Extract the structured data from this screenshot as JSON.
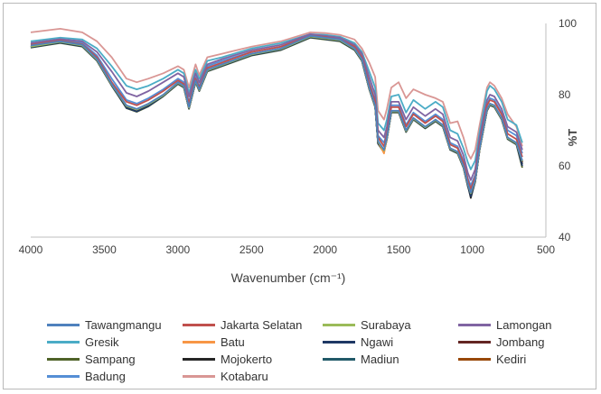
{
  "chart_data": {
    "type": "line",
    "title": "",
    "xlabel": "Wavenumber (cm⁻¹)",
    "ylabel": "%T",
    "xlim": [
      4000,
      500
    ],
    "ylim": [
      40,
      100
    ],
    "x_reversed": true,
    "y_axis_side": "right",
    "grid": false,
    "legend_position": "bottom",
    "xticks": [
      "4000",
      "3500",
      "3000",
      "2500",
      "2000",
      "1500",
      "1000",
      "500"
    ],
    "yticks": [
      "40",
      "60",
      "80",
      "100"
    ],
    "x": [
      4000,
      3800,
      3650,
      3550,
      3450,
      3350,
      3280,
      3200,
      3100,
      3000,
      2960,
      2925,
      2880,
      2855,
      2800,
      2700,
      2500,
      2300,
      2100,
      2000,
      1900,
      1800,
      1750,
      1700,
      1660,
      1640,
      1600,
      1580,
      1550,
      1500,
      1450,
      1400,
      1320,
      1250,
      1200,
      1150,
      1100,
      1060,
      1030,
      1010,
      980,
      950,
      900,
      880,
      850,
      800,
      760,
      700,
      660
    ],
    "series": [
      {
        "name": "Tawangmangu",
        "color": "#4f81bd",
        "values": [
          93.8,
          95.0,
          94.0,
          90.0,
          83.0,
          77.0,
          76.0,
          77.5,
          80.0,
          83.5,
          82.5,
          76.5,
          84.0,
          81.5,
          87.0,
          88.5,
          91.5,
          93.0,
          96.5,
          96.0,
          95.5,
          93.0,
          90.0,
          82.0,
          77.0,
          67.0,
          64.5,
          68.0,
          75.5,
          75.5,
          70.0,
          73.5,
          71.0,
          73.0,
          71.5,
          65.0,
          64.0,
          60.0,
          55.0,
          52.5,
          56.0,
          65.0,
          76.0,
          77.5,
          77.0,
          73.5,
          68.0,
          66.5,
          61.5
        ]
      },
      {
        "name": "Jakarta Selatan",
        "color": "#c0504d",
        "values": [
          94.0,
          95.2,
          94.2,
          90.5,
          83.5,
          78.0,
          77.0,
          78.5,
          81.0,
          84.0,
          83.0,
          77.5,
          84.5,
          82.0,
          87.5,
          89.0,
          92.0,
          93.5,
          96.5,
          96.2,
          95.5,
          93.5,
          90.5,
          83.0,
          78.0,
          68.0,
          65.5,
          69.0,
          76.5,
          76.5,
          71.0,
          74.5,
          72.0,
          74.0,
          72.5,
          66.0,
          65.0,
          61.0,
          56.0,
          53.5,
          57.0,
          66.0,
          77.0,
          78.5,
          78.0,
          74.5,
          69.0,
          67.5,
          62.5
        ]
      },
      {
        "name": "Surabaya",
        "color": "#9bbb59",
        "values": [
          93.5,
          94.8,
          93.8,
          89.8,
          82.8,
          76.8,
          75.8,
          77.3,
          79.8,
          83.3,
          82.3,
          76.3,
          83.8,
          81.3,
          86.8,
          88.3,
          91.3,
          92.8,
          96.3,
          95.8,
          95.3,
          92.8,
          89.8,
          81.8,
          76.8,
          66.8,
          64.3,
          67.8,
          75.3,
          75.3,
          69.8,
          73.3,
          70.8,
          72.8,
          71.3,
          64.8,
          63.8,
          59.8,
          54.8,
          52.3,
          55.8,
          64.8,
          75.8,
          77.3,
          76.8,
          73.3,
          67.8,
          66.3,
          61.3
        ]
      },
      {
        "name": "Lamongan",
        "color": "#8064a2",
        "values": [
          94.5,
          95.6,
          95.0,
          92.0,
          86.5,
          80.5,
          79.5,
          81.0,
          83.5,
          86.0,
          85.0,
          79.5,
          86.0,
          83.5,
          88.5,
          90.0,
          92.5,
          94.0,
          97.0,
          96.5,
          96.0,
          94.0,
          91.5,
          85.0,
          80.0,
          70.0,
          68.0,
          71.0,
          78.0,
          78.0,
          73.0,
          76.5,
          74.0,
          76.0,
          74.5,
          68.0,
          67.0,
          63.0,
          58.0,
          56.0,
          59.0,
          68.0,
          78.5,
          80.0,
          79.5,
          76.0,
          71.0,
          69.5,
          64.5
        ]
      },
      {
        "name": "Gresik",
        "color": "#4bacc6",
        "values": [
          95.0,
          96.0,
          95.5,
          93.0,
          88.0,
          82.5,
          81.5,
          82.5,
          84.5,
          87.0,
          86.0,
          80.5,
          87.0,
          84.5,
          89.5,
          90.5,
          93.0,
          94.5,
          97.0,
          96.8,
          96.3,
          94.5,
          92.0,
          86.5,
          82.0,
          72.0,
          70.0,
          73.0,
          79.5,
          80.0,
          75.0,
          78.5,
          76.0,
          78.0,
          76.5,
          70.0,
          69.0,
          65.0,
          61.0,
          59.0,
          61.5,
          69.5,
          81.0,
          82.5,
          81.5,
          78.0,
          73.0,
          71.5,
          66.5
        ]
      },
      {
        "name": "Batu",
        "color": "#f79646",
        "values": [
          93.6,
          94.9,
          93.9,
          89.9,
          82.9,
          76.9,
          75.9,
          77.4,
          79.9,
          83.4,
          82.4,
          76.4,
          83.9,
          81.4,
          86.9,
          88.4,
          91.4,
          92.9,
          96.4,
          95.9,
          95.4,
          92.9,
          89.9,
          81.9,
          76.9,
          66.9,
          63.5,
          67.9,
          75.4,
          75.4,
          69.9,
          73.4,
          70.9,
          72.9,
          71.4,
          64.9,
          63.9,
          59.9,
          54.9,
          52.4,
          55.9,
          64.9,
          75.9,
          77.4,
          76.9,
          73.4,
          67.9,
          66.4,
          61.4
        ]
      },
      {
        "name": "Ngawi",
        "color": "#1f3864",
        "values": [
          93.3,
          94.6,
          93.6,
          89.6,
          82.6,
          76.3,
          75.3,
          76.8,
          79.6,
          83.1,
          82.1,
          76.1,
          83.6,
          81.1,
          86.6,
          88.1,
          91.1,
          92.6,
          96.1,
          95.6,
          95.1,
          92.6,
          89.6,
          81.6,
          76.6,
          66.3,
          64.0,
          67.6,
          75.1,
          75.1,
          69.6,
          73.1,
          70.6,
          72.6,
          71.1,
          64.6,
          63.6,
          59.6,
          54.3,
          51.5,
          55.6,
          64.6,
          75.6,
          77.1,
          76.6,
          73.1,
          67.6,
          66.1,
          60.0
        ]
      },
      {
        "name": "Jombang",
        "color": "#632523",
        "values": [
          93.4,
          94.7,
          93.7,
          89.7,
          82.7,
          76.5,
          75.5,
          77.0,
          79.7,
          83.2,
          82.2,
          76.2,
          83.7,
          81.2,
          86.7,
          88.2,
          91.2,
          92.7,
          96.2,
          95.7,
          95.2,
          92.7,
          89.7,
          81.7,
          76.7,
          66.5,
          64.2,
          67.7,
          75.2,
          75.2,
          69.7,
          73.2,
          70.7,
          72.7,
          71.2,
          64.7,
          63.7,
          59.7,
          54.5,
          52.0,
          55.7,
          64.7,
          75.7,
          77.2,
          76.7,
          73.2,
          67.7,
          66.2,
          61.0
        ]
      },
      {
        "name": "Sampang",
        "color": "#4f6228",
        "values": [
          93.2,
          94.5,
          93.5,
          89.5,
          82.5,
          76.2,
          75.2,
          76.7,
          79.5,
          83.0,
          82.0,
          76.0,
          83.5,
          81.0,
          86.5,
          88.0,
          91.0,
          92.5,
          96.0,
          95.5,
          95.0,
          92.5,
          89.5,
          81.5,
          76.5,
          66.2,
          63.8,
          67.5,
          75.0,
          75.0,
          69.5,
          73.0,
          70.5,
          72.5,
          71.0,
          64.5,
          63.5,
          59.5,
          54.2,
          51.8,
          55.5,
          64.5,
          75.5,
          77.0,
          76.5,
          73.0,
          67.5,
          66.0,
          59.5
        ]
      },
      {
        "name": "Mojokerto",
        "color": "#262626",
        "values": [
          93.3,
          94.6,
          93.6,
          89.6,
          82.6,
          76.4,
          75.4,
          76.9,
          79.6,
          83.1,
          82.1,
          76.1,
          83.6,
          81.1,
          86.6,
          88.1,
          91.1,
          92.6,
          96.1,
          95.6,
          95.1,
          92.6,
          89.6,
          81.6,
          76.6,
          66.4,
          64.1,
          67.6,
          75.1,
          75.1,
          69.6,
          73.1,
          70.6,
          72.6,
          71.1,
          64.6,
          63.6,
          59.6,
          54.4,
          51.0,
          55.6,
          64.6,
          75.6,
          77.1,
          76.6,
          73.1,
          67.6,
          66.1,
          60.5
        ]
      },
      {
        "name": "Madiun",
        "color": "#215968",
        "values": [
          93.4,
          94.7,
          93.7,
          89.7,
          82.7,
          76.6,
          75.6,
          77.1,
          79.7,
          83.2,
          82.2,
          76.2,
          83.7,
          81.2,
          86.7,
          88.2,
          91.2,
          92.7,
          96.2,
          95.7,
          95.2,
          92.7,
          89.7,
          81.7,
          76.7,
          66.6,
          64.3,
          67.7,
          75.2,
          75.2,
          69.7,
          73.2,
          70.7,
          72.7,
          71.2,
          64.7,
          63.7,
          59.7,
          54.6,
          52.2,
          55.7,
          64.7,
          75.7,
          77.2,
          76.7,
          73.2,
          67.7,
          66.2,
          61.2
        ]
      },
      {
        "name": "Kediri",
        "color": "#984807",
        "values": [
          93.5,
          94.8,
          93.8,
          89.8,
          82.8,
          76.7,
          75.7,
          77.2,
          79.8,
          83.3,
          82.3,
          76.3,
          83.8,
          81.3,
          86.8,
          88.3,
          91.3,
          92.8,
          96.3,
          95.8,
          95.3,
          92.8,
          89.8,
          81.8,
          76.8,
          66.7,
          64.4,
          67.8,
          75.3,
          75.3,
          69.8,
          73.3,
          70.8,
          72.8,
          71.3,
          64.8,
          63.8,
          59.8,
          54.7,
          52.6,
          55.8,
          64.8,
          75.8,
          77.3,
          76.8,
          73.3,
          67.8,
          66.3,
          61.3
        ]
      },
      {
        "name": "Badung",
        "color": "#558ed5",
        "values": [
          94.2,
          95.4,
          94.6,
          91.0,
          84.5,
          78.5,
          77.5,
          79.0,
          81.5,
          84.5,
          83.5,
          78.0,
          85.0,
          82.5,
          88.0,
          89.5,
          92.0,
          93.5,
          96.7,
          96.3,
          95.8,
          93.8,
          91.0,
          83.5,
          78.5,
          68.5,
          66.5,
          69.5,
          77.0,
          77.0,
          71.5,
          75.0,
          72.5,
          74.5,
          73.0,
          66.5,
          65.5,
          61.5,
          56.5,
          54.5,
          57.5,
          66.5,
          77.5,
          79.0,
          78.5,
          75.0,
          70.0,
          68.5,
          63.5
        ]
      },
      {
        "name": "Kotabaru",
        "color": "#d99694",
        "values": [
          97.5,
          98.5,
          97.5,
          95.0,
          90.5,
          84.5,
          83.5,
          84.5,
          86.0,
          88.0,
          87.0,
          82.0,
          88.5,
          85.5,
          90.5,
          91.5,
          93.5,
          95.0,
          97.5,
          97.3,
          96.8,
          95.5,
          93.0,
          89.0,
          85.0,
          75.5,
          73.0,
          76.0,
          82.0,
          83.5,
          79.0,
          81.5,
          80.0,
          79.0,
          78.0,
          72.0,
          72.5,
          68.0,
          63.5,
          62.0,
          64.5,
          71.5,
          82.0,
          83.5,
          82.5,
          79.0,
          74.5,
          71.0,
          65.5
        ]
      }
    ]
  }
}
